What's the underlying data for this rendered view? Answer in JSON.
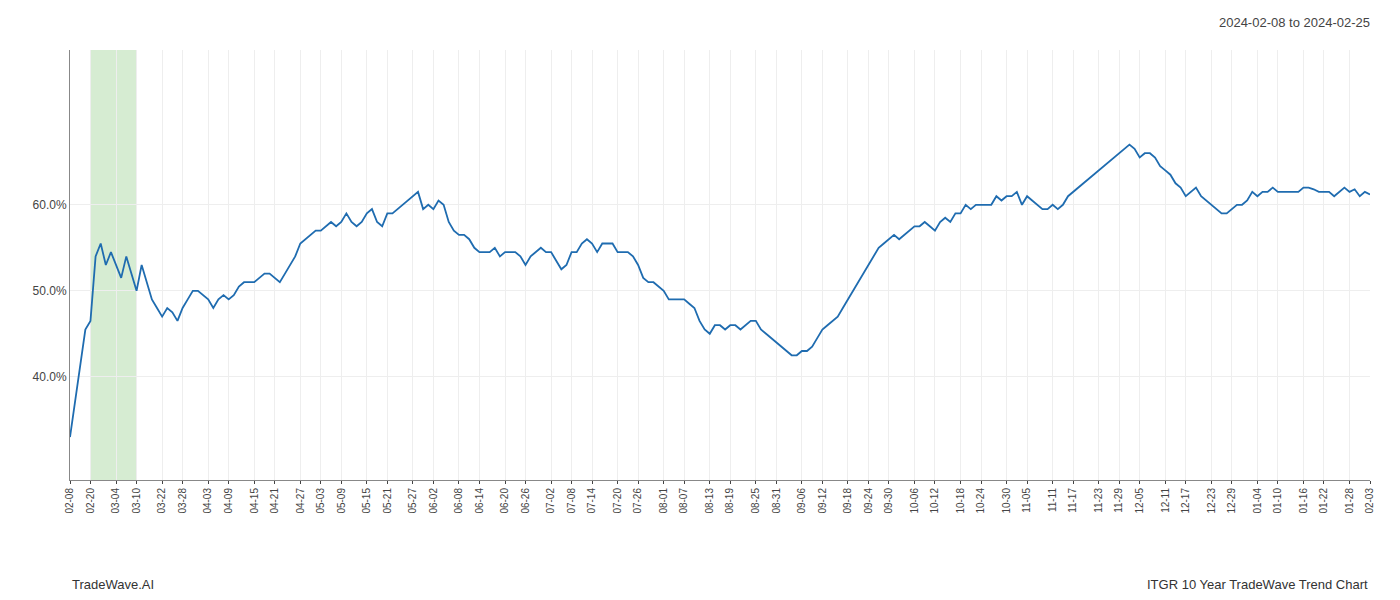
{
  "chart_data": {
    "type": "line",
    "title": "2024-02-08 to 2024-02-25",
    "annotations": [
      "TradeWave.AI",
      "ITGR 10 Year TradeWave Trend Chart"
    ],
    "categories": [
      "02-08",
      null,
      null,
      null,
      "02-20",
      null,
      null,
      null,
      null,
      "03-04",
      null,
      null,
      null,
      "03-10",
      null,
      null,
      null,
      null,
      "03-22",
      null,
      null,
      null,
      "03-28",
      null,
      null,
      null,
      null,
      "04-03",
      null,
      null,
      null,
      "04-09",
      null,
      null,
      null,
      null,
      "04-15",
      null,
      null,
      null,
      "04-21",
      null,
      null,
      null,
      null,
      "04-27",
      null,
      null,
      null,
      "05-03",
      null,
      null,
      null,
      "05-09",
      null,
      null,
      null,
      null,
      "05-15",
      null,
      null,
      null,
      "05-21",
      null,
      null,
      null,
      null,
      "05-27",
      null,
      null,
      null,
      "06-02",
      null,
      null,
      null,
      null,
      "06-08",
      null,
      null,
      null,
      "06-14",
      null,
      null,
      null,
      null,
      "06-20",
      null,
      null,
      null,
      "06-26",
      null,
      null,
      null,
      null,
      "07-02",
      null,
      null,
      null,
      "07-08",
      null,
      null,
      null,
      "07-14",
      null,
      null,
      null,
      null,
      "07-20",
      null,
      null,
      null,
      "07-26",
      null,
      null,
      null,
      null,
      "08-01",
      null,
      null,
      null,
      "08-07",
      null,
      null,
      null,
      null,
      "08-13",
      null,
      null,
      null,
      "08-19",
      null,
      null,
      null,
      null,
      "08-25",
      null,
      null,
      null,
      "08-31",
      null,
      null,
      null,
      null,
      "09-06",
      null,
      null,
      null,
      "09-12",
      null,
      null,
      null,
      null,
      "09-18",
      null,
      null,
      null,
      "09-24",
      null,
      null,
      null,
      "09-30",
      null,
      null,
      null,
      null,
      "10-06",
      null,
      null,
      null,
      "10-12",
      null,
      null,
      null,
      null,
      "10-18",
      null,
      null,
      null,
      "10-24",
      null,
      null,
      null,
      null,
      "10-30",
      null,
      null,
      null,
      "11-05",
      null,
      null,
      null,
      null,
      "11-11",
      null,
      null,
      null,
      "11-17",
      null,
      null,
      null,
      null,
      "11-23",
      null,
      null,
      null,
      "11-29",
      null,
      null,
      null,
      "12-05",
      null,
      null,
      null,
      null,
      "12-11",
      null,
      null,
      null,
      "12-17",
      null,
      null,
      null,
      null,
      "12-23",
      null,
      null,
      null,
      "12-29",
      null,
      null,
      null,
      null,
      "01-04",
      null,
      null,
      null,
      "01-10",
      null,
      null,
      null,
      null,
      "01-16",
      null,
      null,
      null,
      "01-22",
      null,
      null,
      null,
      null,
      "01-28",
      null,
      null,
      null,
      "02-03"
    ],
    "values": [
      0.33,
      0.37,
      0.41,
      0.455,
      0.465,
      0.54,
      0.555,
      0.53,
      0.545,
      0.53,
      0.515,
      0.54,
      0.52,
      0.5,
      0.53,
      0.51,
      0.49,
      0.48,
      0.47,
      0.48,
      0.475,
      0.465,
      0.48,
      0.49,
      0.5,
      0.5,
      0.495,
      0.49,
      0.48,
      0.49,
      0.495,
      0.49,
      0.495,
      0.505,
      0.51,
      0.51,
      0.51,
      0.515,
      0.52,
      0.52,
      0.515,
      0.51,
      0.52,
      0.53,
      0.54,
      0.555,
      0.56,
      0.565,
      0.57,
      0.57,
      0.575,
      0.58,
      0.575,
      0.58,
      0.59,
      0.58,
      0.575,
      0.58,
      0.59,
      0.595,
      0.58,
      0.575,
      0.59,
      0.59,
      0.595,
      0.6,
      0.605,
      0.61,
      0.615,
      0.595,
      0.6,
      0.595,
      0.605,
      0.6,
      0.58,
      0.57,
      0.565,
      0.565,
      0.56,
      0.55,
      0.545,
      0.545,
      0.545,
      0.55,
      0.54,
      0.545,
      0.545,
      0.545,
      0.54,
      0.53,
      0.54,
      0.545,
      0.55,
      0.545,
      0.545,
      0.535,
      0.525,
      0.53,
      0.545,
      0.545,
      0.555,
      0.56,
      0.555,
      0.545,
      0.555,
      0.555,
      0.555,
      0.545,
      0.545,
      0.545,
      0.54,
      0.53,
      0.515,
      0.51,
      0.51,
      0.505,
      0.5,
      0.49,
      0.49,
      0.49,
      0.49,
      0.485,
      0.48,
      0.465,
      0.455,
      0.45,
      0.46,
      0.46,
      0.455,
      0.46,
      0.46,
      0.455,
      0.46,
      0.465,
      0.465,
      0.455,
      0.45,
      0.445,
      0.44,
      0.435,
      0.43,
      0.425,
      0.425,
      0.43,
      0.43,
      0.435,
      0.445,
      0.455,
      0.46,
      0.465,
      0.47,
      0.48,
      0.49,
      0.5,
      0.51,
      0.52,
      0.53,
      0.54,
      0.55,
      0.555,
      0.56,
      0.565,
      0.56,
      0.565,
      0.57,
      0.575,
      0.575,
      0.58,
      0.575,
      0.57,
      0.58,
      0.585,
      0.58,
      0.59,
      0.59,
      0.6,
      0.595,
      0.6,
      0.6,
      0.6,
      0.6,
      0.61,
      0.605,
      0.61,
      0.61,
      0.615,
      0.6,
      0.61,
      0.605,
      0.6,
      0.595,
      0.595,
      0.6,
      0.595,
      0.6,
      0.61,
      0.615,
      0.62,
      0.625,
      0.63,
      0.635,
      0.64,
      0.645,
      0.65,
      0.655,
      0.66,
      0.665,
      0.67,
      0.665,
      0.655,
      0.66,
      0.66,
      0.655,
      0.645,
      0.64,
      0.635,
      0.625,
      0.62,
      0.61,
      0.615,
      0.62,
      0.61,
      0.605,
      0.6,
      0.595,
      0.59,
      0.59,
      0.595,
      0.6,
      0.6,
      0.605,
      0.615,
      0.61,
      0.615,
      0.615,
      0.62,
      0.615,
      0.615,
      0.615,
      0.615,
      0.615,
      0.62,
      0.62,
      0.618,
      0.615,
      0.615,
      0.615,
      0.61,
      0.615,
      0.62,
      0.615,
      0.618,
      0.61,
      0.615,
      0.612
    ],
    "color": "#1f6cb0",
    "ylim": [
      0.28,
      0.78
    ],
    "yticks": [
      {
        "value": 0.4,
        "label": "40.0%"
      },
      {
        "value": 0.5,
        "label": "50.0%"
      },
      {
        "value": 0.6,
        "label": "60.0%"
      }
    ],
    "grid": true,
    "highlight": {
      "from": "02-20",
      "to": "03-10",
      "color": "#d6ecd2"
    }
  }
}
